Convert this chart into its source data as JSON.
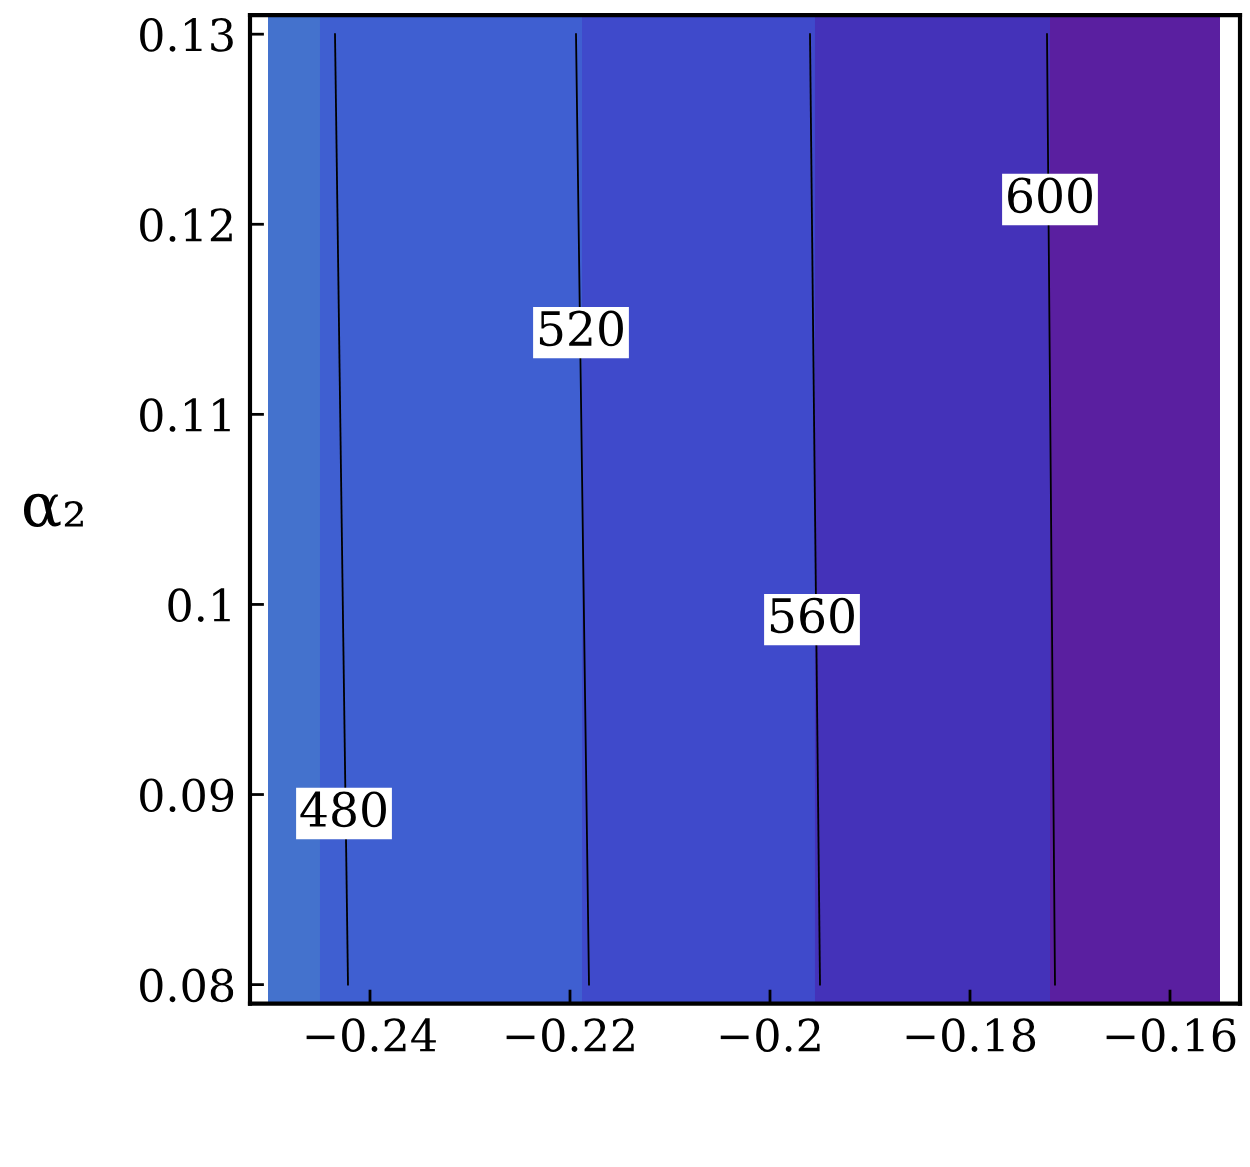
{
  "chart_data": {
    "type": "line",
    "ylabel": "α₂",
    "xlim": [
      -0.252,
      -0.153
    ],
    "ylim": [
      0.079,
      0.131
    ],
    "xticks": [
      {
        "value": -0.24,
        "label": "−0.24"
      },
      {
        "value": -0.22,
        "label": "−0.22"
      },
      {
        "value": -0.2,
        "label": "−0.2"
      },
      {
        "value": -0.18,
        "label": "−0.18"
      },
      {
        "value": -0.16,
        "label": "−0.16"
      }
    ],
    "yticks": [
      0.08,
      0.09,
      0.1,
      0.11,
      0.12,
      0.13
    ],
    "grid": false,
    "marker": "none",
    "line_style": "solid",
    "bands": [
      {
        "axis": "x",
        "from": -0.2502,
        "to": -0.245,
        "color": "#4472cd"
      },
      {
        "axis": "x",
        "from": -0.245,
        "to": -0.2188,
        "color": "#3f5fd1"
      },
      {
        "axis": "x",
        "from": -0.2188,
        "to": -0.1955,
        "color": "#3f4acb"
      },
      {
        "axis": "x",
        "from": -0.1955,
        "to": -0.172,
        "color": "#4432b9"
      },
      {
        "axis": "x",
        "from": -0.172,
        "to": -0.155,
        "color": "#5a1fa0"
      }
    ],
    "series": [
      {
        "color": "#000000",
        "x": [
          -0.2435,
          -0.2422
        ],
        "values": [
          0.13,
          0.08
        ]
      },
      {
        "color": "#000000",
        "x": [
          -0.2194,
          -0.2181
        ],
        "values": [
          0.13,
          0.08
        ]
      },
      {
        "color": "#000000",
        "x": [
          -0.196,
          -0.195
        ],
        "values": [
          0.13,
          0.08
        ]
      },
      {
        "color": "#000000",
        "x": [
          -0.1723,
          -0.1715
        ],
        "values": [
          0.13,
          0.08
        ]
      }
    ],
    "annotations": [
      {
        "text": "480",
        "x": -0.2426,
        "y": 0.089
      },
      {
        "text": "520",
        "x": -0.2189,
        "y": 0.1143
      },
      {
        "text": "560",
        "x": -0.1958,
        "y": 0.0992
      },
      {
        "text": "600",
        "x": -0.172,
        "y": 0.1213
      }
    ]
  }
}
